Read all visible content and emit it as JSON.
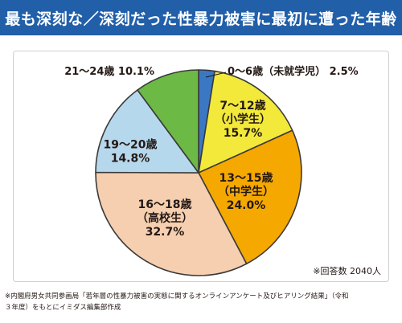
{
  "title": "最も深刻な／深刻だった性暴力被害に最初に遭った年齢",
  "chart_data": {
    "type": "pie",
    "title": "最も深刻な／深刻だった性暴力被害に最初に遭った年齢",
    "start": "12 o'clock, clockwise",
    "slices": [
      {
        "label": "0～6歳（未就学児）",
        "value": 2.5,
        "value_label": "2.5%",
        "color": "#3b78c4"
      },
      {
        "label": "7～12歳",
        "sublabel": "（小学生）",
        "value": 15.7,
        "value_label": "15.7%",
        "color": "#f2e93a"
      },
      {
        "label": "13～15歳",
        "sublabel": "（中学生）",
        "value": 24.0,
        "value_label": "24.0%",
        "color": "#f5a800"
      },
      {
        "label": "16～18歳",
        "sublabel": "（高校生）",
        "value": 32.7,
        "value_label": "32.7%",
        "color": "#f5cfb0"
      },
      {
        "label": "19～20歳",
        "value": 14.8,
        "value_label": "14.8%",
        "color": "#b6d8ec"
      },
      {
        "label": "21～24歳",
        "value": 10.1,
        "value_label": "10.1%",
        "color": "#6cba45"
      }
    ]
  },
  "note": "※回答数 2040人",
  "source": {
    "line1": "※内閣府男女共同参画局「若年層の性暴力被害の実態に関するオンラインアンケート及びヒアリング結果」（令和",
    "line2": "３年度）をもとにイミダス編集部作成"
  }
}
